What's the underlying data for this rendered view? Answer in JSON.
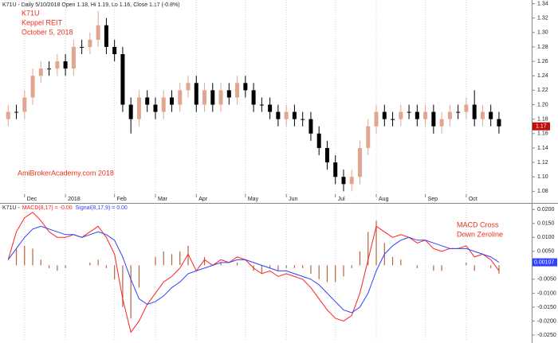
{
  "chart_data": [
    {
      "type": "candlestick",
      "title": "K71U - Daily 5/10/2018 Open 1.18, Hi 1.19, Lo 1.16, Close 1.17 (-0.8%)",
      "annotations": [
        "K71U",
        "Keppel REIT",
        "October 5, 2018",
        "AmiBrokerAcademy.com  2018"
      ],
      "annotation_color": "#e8321e",
      "categories": [
        null,
        null,
        "Dec",
        null,
        null,
        null,
        null,
        "2018",
        null,
        null,
        null,
        null,
        null,
        "Feb",
        null,
        null,
        null,
        null,
        "Mar",
        null,
        null,
        null,
        null,
        "Apr",
        null,
        null,
        null,
        null,
        null,
        "May",
        null,
        null,
        null,
        null,
        "Jun",
        null,
        null,
        null,
        null,
        null,
        "Jul",
        null,
        null,
        null,
        null,
        "Aug",
        null,
        null,
        null,
        null,
        null,
        "Sep",
        null,
        null,
        null,
        null,
        "Oct",
        null,
        null,
        null,
        null
      ],
      "open": [
        1.18,
        1.19,
        1.19,
        1.21,
        1.24,
        1.25,
        1.25,
        1.26,
        1.25,
        1.28,
        1.28,
        1.29,
        1.31,
        1.28,
        1.27,
        1.2,
        1.18,
        1.21,
        1.2,
        1.19,
        1.21,
        1.2,
        1.22,
        1.23,
        1.2,
        1.22,
        1.2,
        1.22,
        1.21,
        1.23,
        1.22,
        1.2,
        1.2,
        1.19,
        1.18,
        1.19,
        1.18,
        1.18,
        1.16,
        1.14,
        1.12,
        1.1,
        1.09,
        1.1,
        1.14,
        1.17,
        1.19,
        1.18,
        1.18,
        1.19,
        1.19,
        1.18,
        1.19,
        1.17,
        1.18,
        1.19,
        1.19,
        1.2,
        1.18,
        1.19,
        1.18
      ],
      "high": [
        1.2,
        1.2,
        1.22,
        1.25,
        1.26,
        1.26,
        1.27,
        1.27,
        1.29,
        1.29,
        1.3,
        1.33,
        1.32,
        1.29,
        1.28,
        1.21,
        1.22,
        1.22,
        1.21,
        1.22,
        1.22,
        1.23,
        1.24,
        1.24,
        1.23,
        1.23,
        1.23,
        1.23,
        1.24,
        1.24,
        1.23,
        1.21,
        1.21,
        1.2,
        1.2,
        1.2,
        1.19,
        1.19,
        1.17,
        1.15,
        1.13,
        1.11,
        1.11,
        1.15,
        1.18,
        1.2,
        1.2,
        1.19,
        1.2,
        1.2,
        1.2,
        1.2,
        1.2,
        1.19,
        1.2,
        1.2,
        1.21,
        1.22,
        1.2,
        1.2,
        1.19
      ],
      "low": [
        1.17,
        1.18,
        1.18,
        1.2,
        1.23,
        1.24,
        1.24,
        1.24,
        1.24,
        1.27,
        1.27,
        1.28,
        1.27,
        1.26,
        1.19,
        1.16,
        1.17,
        1.19,
        1.18,
        1.18,
        1.19,
        1.19,
        1.21,
        1.19,
        1.19,
        1.19,
        1.19,
        1.2,
        1.2,
        1.21,
        1.19,
        1.19,
        1.18,
        1.17,
        1.17,
        1.17,
        1.17,
        1.15,
        1.13,
        1.11,
        1.09,
        1.08,
        1.08,
        1.09,
        1.13,
        1.16,
        1.17,
        1.17,
        1.17,
        1.18,
        1.17,
        1.17,
        1.16,
        1.16,
        1.17,
        1.18,
        1.18,
        1.17,
        1.17,
        1.17,
        1.16
      ],
      "close": [
        1.19,
        1.19,
        1.21,
        1.24,
        1.25,
        1.25,
        1.26,
        1.25,
        1.28,
        1.28,
        1.29,
        1.31,
        1.28,
        1.27,
        1.2,
        1.18,
        1.21,
        1.2,
        1.19,
        1.21,
        1.2,
        1.22,
        1.23,
        1.2,
        1.22,
        1.2,
        1.22,
        1.21,
        1.23,
        1.22,
        1.2,
        1.2,
        1.19,
        1.18,
        1.19,
        1.18,
        1.18,
        1.16,
        1.14,
        1.12,
        1.1,
        1.09,
        1.1,
        1.14,
        1.17,
        1.19,
        1.18,
        1.18,
        1.19,
        1.19,
        1.18,
        1.19,
        1.17,
        1.18,
        1.19,
        1.19,
        1.2,
        1.18,
        1.19,
        1.18,
        1.17
      ],
      "up_color": "#e2a58f",
      "down_color": "#000000",
      "last_color": "#c0100c",
      "ylim": [
        1.076,
        1.345
      ],
      "yticks": [
        {
          "value": 1.08,
          "label": "1.08"
        },
        {
          "value": 1.1,
          "label": "1.10"
        },
        {
          "value": 1.12,
          "label": "1.12"
        },
        {
          "value": 1.14,
          "label": "1.14"
        },
        {
          "value": 1.16,
          "label": "1.16"
        },
        {
          "value": 1.18,
          "label": "1.18"
        },
        {
          "value": 1.2,
          "label": "1.20"
        },
        {
          "value": 1.22,
          "label": "1.22"
        },
        {
          "value": 1.24,
          "label": "1.24"
        },
        {
          "value": 1.26,
          "label": "1.26"
        },
        {
          "value": 1.28,
          "label": "1.28"
        },
        {
          "value": 1.3,
          "label": "1.30"
        },
        {
          "value": 1.32,
          "label": "1.32"
        },
        {
          "value": 1.34,
          "label": "1.34"
        }
      ],
      "grid": true
    },
    {
      "type": "macd",
      "title": "K71U -",
      "annotations": [
        "MACD Cross",
        "Down Zeroline"
      ],
      "annotation_color": "#e8321e",
      "series": [
        {
          "name": "MACD(8,17) = -0.00",
          "color": "#ff2020",
          "values": [
            0.002,
            0.012,
            0.017,
            0.019,
            0.016,
            0.012,
            0.01,
            0.01,
            0.011,
            0.01,
            0.012,
            0.014,
            0.01,
            0.004,
            -0.012,
            -0.024,
            -0.02,
            -0.014,
            -0.01,
            -0.006,
            -0.004,
            -0.001,
            0.004,
            -0.002,
            0.002,
            0.0,
            0.002,
            0.001,
            0.003,
            0.002,
            -0.001,
            -0.003,
            -0.002,
            -0.004,
            -0.003,
            -0.004,
            -0.005,
            -0.008,
            -0.012,
            -0.016,
            -0.019,
            -0.02,
            -0.018,
            -0.01,
            0.002,
            0.014,
            0.012,
            0.01,
            0.011,
            0.01,
            0.008,
            0.009,
            0.006,
            0.005,
            0.006,
            0.006,
            0.007,
            0.003,
            0.004,
            0.002,
            -0.002
          ]
        },
        {
          "name": "Signal(8,17,9) = 0.00",
          "color": "#3040ff",
          "values": [
            0.002,
            0.006,
            0.01,
            0.013,
            0.014,
            0.013,
            0.012,
            0.011,
            0.011,
            0.01,
            0.011,
            0.012,
            0.011,
            0.009,
            0.003,
            -0.005,
            -0.012,
            -0.014,
            -0.013,
            -0.011,
            -0.008,
            -0.006,
            -0.003,
            -0.002,
            -0.001,
            0.0,
            0.001,
            0.001,
            0.002,
            0.002,
            0.001,
            0.0,
            -0.001,
            -0.002,
            -0.002,
            -0.003,
            -0.004,
            -0.005,
            -0.007,
            -0.01,
            -0.013,
            -0.016,
            -0.017,
            -0.015,
            -0.01,
            -0.002,
            0.004,
            0.007,
            0.009,
            0.01,
            0.009,
            0.009,
            0.008,
            0.007,
            0.006,
            0.006,
            0.006,
            0.005,
            0.004,
            0.003,
            0.00107
          ]
        }
      ],
      "histogram": {
        "color": "#b5653a",
        "values": [
          0,
          0.006,
          0.007,
          0.006,
          0.002,
          -0.001,
          -0.002,
          -0.001,
          0,
          0,
          0.001,
          0.002,
          -0.001,
          -0.005,
          -0.015,
          -0.019,
          -0.008,
          0,
          0.003,
          0.005,
          0.004,
          0.005,
          0.007,
          0,
          0.003,
          0,
          0.001,
          0,
          0.001,
          0,
          -0.002,
          -0.003,
          -0.001,
          -0.002,
          -0.001,
          -0.001,
          -0.001,
          -0.003,
          -0.005,
          -0.006,
          -0.006,
          -0.004,
          -0.001,
          0.005,
          0.012,
          0.016,
          0.008,
          0.003,
          0.002,
          0,
          -0.001,
          0,
          -0.002,
          -0.002,
          0,
          0,
          0.001,
          -0.002,
          0,
          -0.001,
          -0.003
        ]
      },
      "ylim": [
        -0.027,
        0.0215
      ],
      "yticks": [
        {
          "value": 0.02,
          "label": "0.0200"
        },
        {
          "value": 0.015,
          "label": "0.0150"
        },
        {
          "value": 0.01,
          "label": "0.0100"
        },
        {
          "value": 0.005,
          "label": "0.0050"
        },
        {
          "value": -0.005,
          "label": "-0.0050"
        },
        {
          "value": -0.01,
          "label": "-0.0100"
        },
        {
          "value": -0.015,
          "label": "-0.0150"
        },
        {
          "value": -0.02,
          "label": "-0.0200"
        },
        {
          "value": -0.025,
          "label": "-0.0250"
        }
      ],
      "grid": true
    }
  ]
}
